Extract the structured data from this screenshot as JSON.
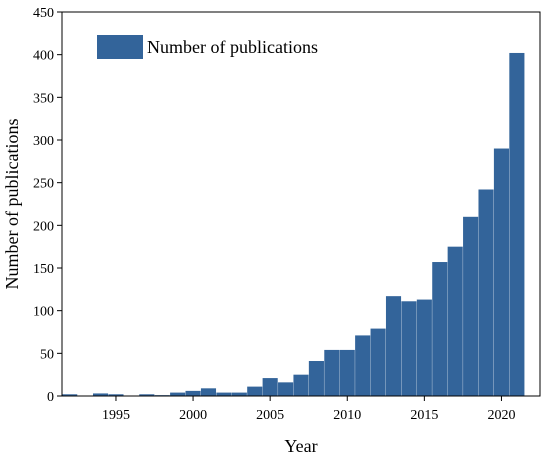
{
  "chart_data": {
    "type": "bar",
    "title": "",
    "xlabel": "Year",
    "ylabel": "Number of publications",
    "x": [
      1992,
      1993,
      1994,
      1995,
      1996,
      1997,
      1998,
      1999,
      2000,
      2001,
      2002,
      2003,
      2004,
      2005,
      2006,
      2007,
      2008,
      2009,
      2010,
      2011,
      2012,
      2013,
      2014,
      2015,
      2016,
      2017,
      2018,
      2019,
      2020,
      2021
    ],
    "series": [
      {
        "name": "Number of publications",
        "values": [
          2,
          0,
          3,
          2,
          0,
          2,
          1,
          4,
          6,
          9,
          4,
          4,
          11,
          21,
          16,
          25,
          41,
          54,
          54,
          71,
          79,
          117,
          111,
          113,
          157,
          175,
          210,
          242,
          290,
          402
        ]
      }
    ],
    "xlim": [
      1991.5,
      2022.5
    ],
    "ylim": [
      0,
      450
    ],
    "x_ticks": [
      1995,
      2000,
      2005,
      2010,
      2015,
      2020
    ],
    "y_ticks": [
      0,
      50,
      100,
      150,
      200,
      250,
      300,
      350,
      400,
      450
    ],
    "grid": false,
    "legend_position": "top-left",
    "bar_color": "#33649a"
  }
}
